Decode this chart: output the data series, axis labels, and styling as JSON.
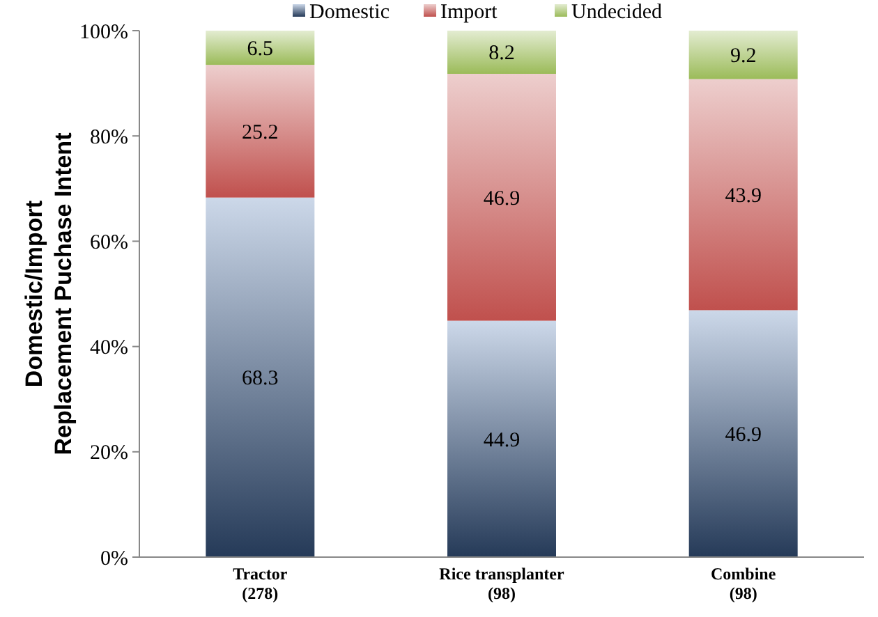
{
  "chart_data": {
    "type": "bar",
    "stacked": true,
    "ylabel": "Domestic/Import\nReplacement Puchase Intent",
    "categories": [
      "Tractor\n(278)",
      "Rice transplanter\n(98)",
      "Combine\n(98)"
    ],
    "series": [
      {
        "name": "Domestic",
        "color": "#4a74b0",
        "values": [
          68.3,
          44.9,
          46.9
        ]
      },
      {
        "name": "Import",
        "color": "#c0504d",
        "values": [
          25.2,
          46.9,
          43.9
        ]
      },
      {
        "name": "Undecided",
        "color": "#9bbb59",
        "values": [
          6.5,
          8.2,
          9.2
        ]
      }
    ],
    "ylim": [
      0,
      100
    ],
    "yticks": [
      {
        "value": 0,
        "label": "0%"
      },
      {
        "value": 20,
        "label": "20%"
      },
      {
        "value": 40,
        "label": "40%"
      },
      {
        "value": 60,
        "label": "60%"
      },
      {
        "value": 80,
        "label": "80%"
      },
      {
        "value": 100,
        "label": "100%"
      }
    ],
    "data_labels": true,
    "legend": "top",
    "grid": false
  }
}
